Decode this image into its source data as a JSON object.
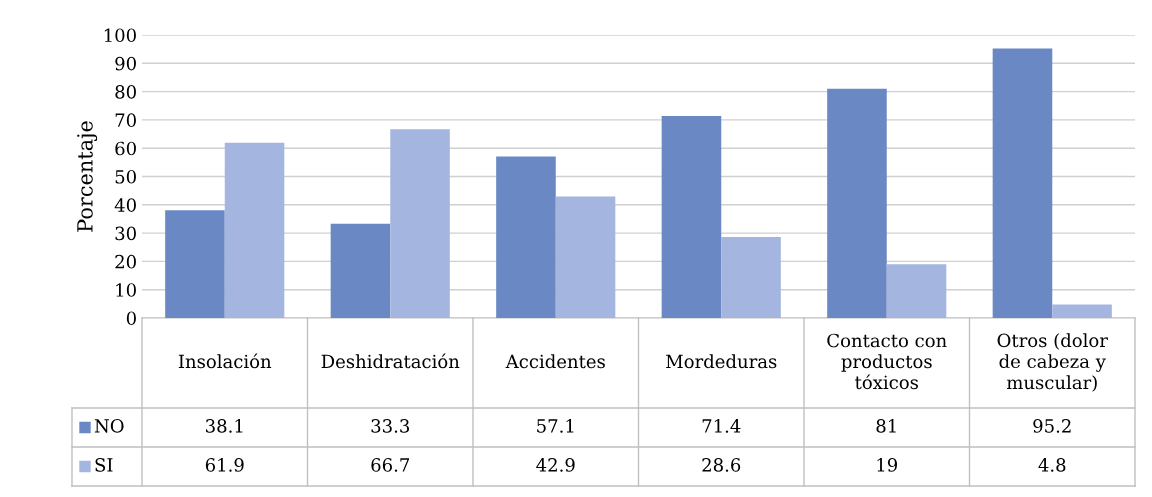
{
  "chart_data": {
    "type": "bar",
    "ylabel": "Porcentaje",
    "categories": [
      "Insolación",
      "Deshidratación",
      "Accidentes",
      "Mordeduras",
      "Contacto con\nproductos\ntóxicos",
      "Otros (dolor\nde cabeza y\nmuscular)"
    ],
    "series": [
      {
        "name": "NO",
        "color": "#6a88c4",
        "values": [
          38.1,
          33.3,
          57.1,
          71.4,
          81,
          95.2
        ]
      },
      {
        "name": "SI",
        "color": "#a4b6e0",
        "values": [
          61.9,
          66.7,
          42.9,
          28.6,
          19,
          4.8
        ]
      }
    ],
    "ylim": [
      0,
      100
    ],
    "yticks": [
      0,
      10,
      20,
      30,
      40,
      50,
      60,
      70,
      80,
      90,
      100
    ],
    "grid": "y",
    "data_labels": true,
    "tick_labels": "y",
    "legend": "bottom"
  }
}
